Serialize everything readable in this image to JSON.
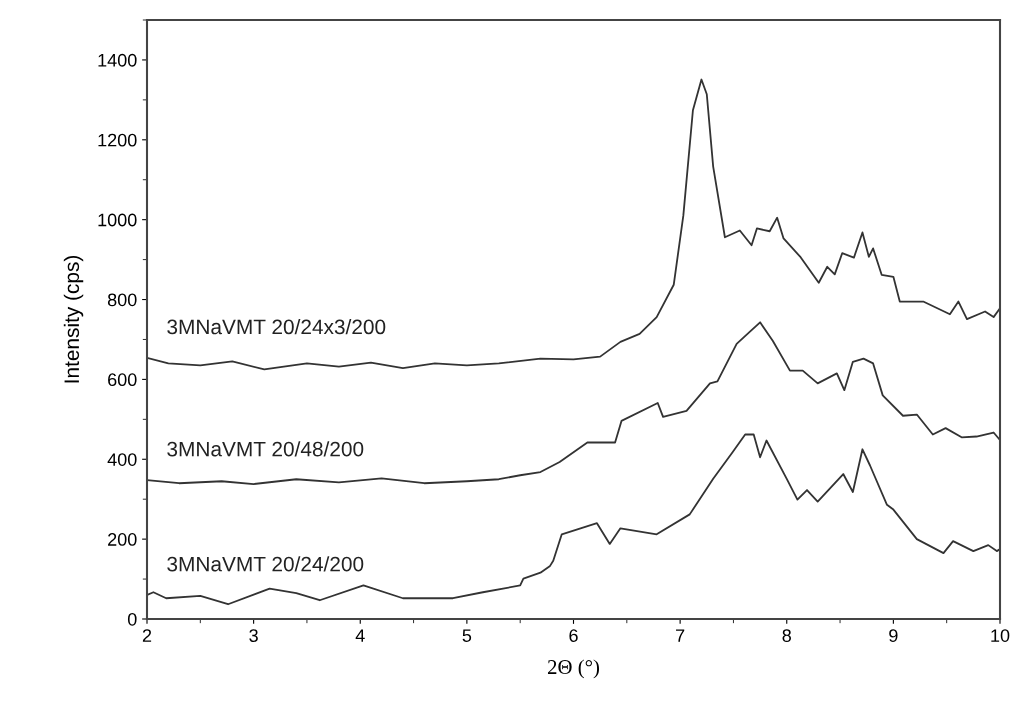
{
  "chart_data": {
    "type": "line",
    "xlabel": "2Θ (°)",
    "ylabel": "Intensity (cps)",
    "xlim": [
      2,
      10
    ],
    "ylim": [
      0,
      1500
    ],
    "xticks": [
      2,
      3,
      4,
      5,
      6,
      7,
      8,
      9,
      10
    ],
    "yticks": [
      0,
      200,
      400,
      600,
      800,
      1000,
      1200,
      1400
    ],
    "grid": false,
    "legend": false,
    "marker": "none",
    "line_style": "solid",
    "series": [
      {
        "name": "3MNaVMT 20/24x3/200",
        "color": "#333333",
        "x": [
          2.0,
          2.2,
          2.5,
          2.8,
          3.1,
          3.5,
          3.8,
          4.1,
          4.4,
          4.7,
          5.0,
          5.3,
          5.69,
          6.0,
          6.25,
          6.44,
          6.62,
          6.78,
          6.94,
          7.03,
          7.12,
          7.2,
          7.25,
          7.31,
          7.42,
          7.56,
          7.67,
          7.72,
          7.84,
          7.91,
          7.97,
          8.13,
          8.3,
          8.38,
          8.45,
          8.52,
          8.63,
          8.71,
          8.77,
          8.81,
          8.89,
          9.0,
          9.06,
          9.28,
          9.53,
          9.61,
          9.69,
          9.86,
          9.94,
          10.0
        ],
        "values": [
          654,
          640,
          635,
          645,
          625,
          640,
          632,
          642,
          628,
          640,
          635,
          640,
          652,
          650,
          657,
          694,
          714,
          756,
          837,
          1010,
          1274,
          1351,
          1314,
          1133,
          956,
          973,
          936,
          978,
          971,
          1005,
          953,
          906,
          842,
          882,
          863,
          916,
          905,
          968,
          907,
          928,
          862,
          857,
          795,
          795,
          763,
          795,
          751,
          770,
          756,
          778
        ]
      },
      {
        "name": "3MNaVMT 20/48/200",
        "color": "#333333",
        "x": [
          2.0,
          2.3,
          2.7,
          3.0,
          3.4,
          3.8,
          4.2,
          4.6,
          5.0,
          5.3,
          5.5,
          5.69,
          5.87,
          6.13,
          6.39,
          6.45,
          6.79,
          6.84,
          7.06,
          7.28,
          7.35,
          7.53,
          7.66,
          7.75,
          7.87,
          8.03,
          8.15,
          8.29,
          8.47,
          8.54,
          8.62,
          8.72,
          8.81,
          8.9,
          9.09,
          9.22,
          9.37,
          9.49,
          9.64,
          9.78,
          9.94,
          10.0
        ],
        "values": [
          348,
          340,
          345,
          338,
          350,
          342,
          352,
          340,
          345,
          350,
          360,
          368,
          393,
          442,
          442,
          496,
          541,
          506,
          521,
          590,
          595,
          689,
          721,
          743,
          696,
          622,
          622,
          590,
          615,
          573,
          644,
          652,
          640,
          560,
          509,
          512,
          462,
          478,
          455,
          457,
          467,
          448
        ]
      },
      {
        "name": "3MNaVMT 20/24/200",
        "color": "#333333",
        "x": [
          2.0,
          2.06,
          2.18,
          2.5,
          2.76,
          3.15,
          3.4,
          3.62,
          4.03,
          4.4,
          4.87,
          5.15,
          5.5,
          5.53,
          5.69,
          5.78,
          5.81,
          5.89,
          6.22,
          6.34,
          6.44,
          6.78,
          7.09,
          7.31,
          7.49,
          7.61,
          7.69,
          7.75,
          7.81,
          8.0,
          8.1,
          8.19,
          8.29,
          8.53,
          8.62,
          8.71,
          8.78,
          8.94,
          9.0,
          9.22,
          9.47,
          9.56,
          9.75,
          9.89,
          9.97,
          10.0
        ],
        "values": [
          60,
          67,
          52,
          58,
          37,
          76,
          65,
          47,
          84,
          52,
          52,
          67,
          84,
          101,
          116,
          133,
          146,
          212,
          240,
          188,
          227,
          212,
          262,
          351,
          417,
          462,
          462,
          405,
          447,
          351,
          299,
          323,
          294,
          363,
          318,
          425,
          385,
          286,
          274,
          200,
          165,
          195,
          170,
          185,
          170,
          175
        ]
      }
    ]
  }
}
